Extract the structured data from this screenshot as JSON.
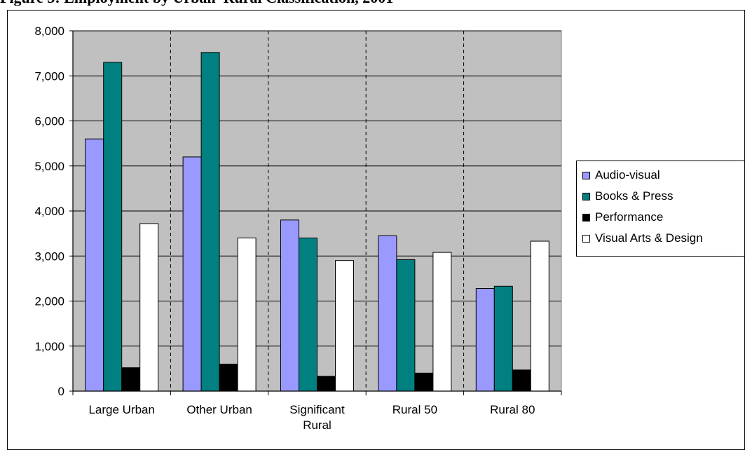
{
  "title": "Figure 3: Employment by Urban–Rural Classification, 2001",
  "chart_data": {
    "type": "bar",
    "categories": [
      [
        "Large Urban"
      ],
      [
        "Other Urban"
      ],
      [
        "Significant",
        "Rural"
      ],
      [
        "Rural 50"
      ],
      [
        "Rural 80"
      ]
    ],
    "series": [
      {
        "name": "Audio-visual",
        "color": "#9999ff",
        "values": [
          5600,
          5200,
          3800,
          3450,
          2280
        ]
      },
      {
        "name": "Books & Press",
        "color": "#008080",
        "values": [
          7300,
          7520,
          3400,
          2920,
          2330
        ]
      },
      {
        "name": "Performance",
        "color": "#000000",
        "values": [
          520,
          600,
          330,
          400,
          470
        ]
      },
      {
        "name": "Visual Arts & Design",
        "color": "#ffffff",
        "values": [
          3720,
          3400,
          2900,
          3080,
          3330
        ]
      }
    ],
    "yticks": [
      "0",
      "1,000",
      "2,000",
      "3,000",
      "4,000",
      "5,000",
      "6,000",
      "7,000",
      "8,000"
    ],
    "ylim": [
      0,
      8000
    ],
    "plot_background": "#c0c0c0",
    "grid": true,
    "legend_position": "right"
  }
}
